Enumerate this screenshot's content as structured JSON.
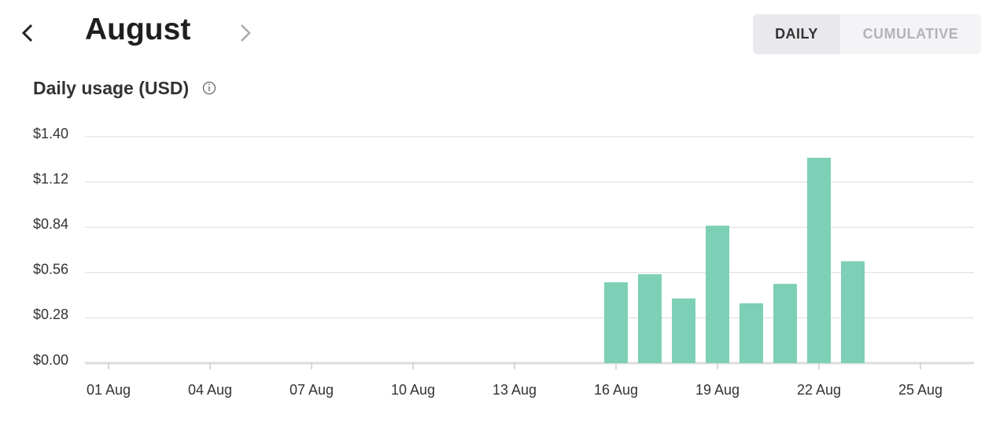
{
  "header": {
    "title": "August",
    "tabs": [
      "DAILY",
      "CUMULATIVE"
    ]
  },
  "chart_data": {
    "type": "bar",
    "title": "Daily usage (USD)",
    "categories": [
      "01 Aug",
      null,
      null,
      "04 Aug",
      null,
      null,
      "07 Aug",
      null,
      null,
      "10 Aug",
      null,
      null,
      "13 Aug",
      null,
      null,
      "16 Aug",
      null,
      null,
      "19 Aug",
      null,
      null,
      "22 Aug",
      null,
      null,
      "25 Aug",
      null
    ],
    "values": [
      0,
      0,
      0,
      0,
      0,
      0,
      0,
      0,
      0,
      0,
      0,
      0,
      0,
      0,
      0,
      0.5,
      0.55,
      0.4,
      0.85,
      0.37,
      0.49,
      1.27,
      0.63,
      0,
      0,
      0
    ],
    "color": "#7dcfb6",
    "ylim": [
      0,
      1.4
    ],
    "yticks": [
      {
        "value": 0,
        "label": "$0.00"
      },
      {
        "value": 0.28,
        "label": "$0.28"
      },
      {
        "value": 0.56,
        "label": "$0.56"
      },
      {
        "value": 0.84,
        "label": "$0.84"
      },
      {
        "value": 1.12,
        "label": "$1.12"
      },
      {
        "value": 1.4,
        "label": "$1.40"
      }
    ],
    "grid": true
  }
}
